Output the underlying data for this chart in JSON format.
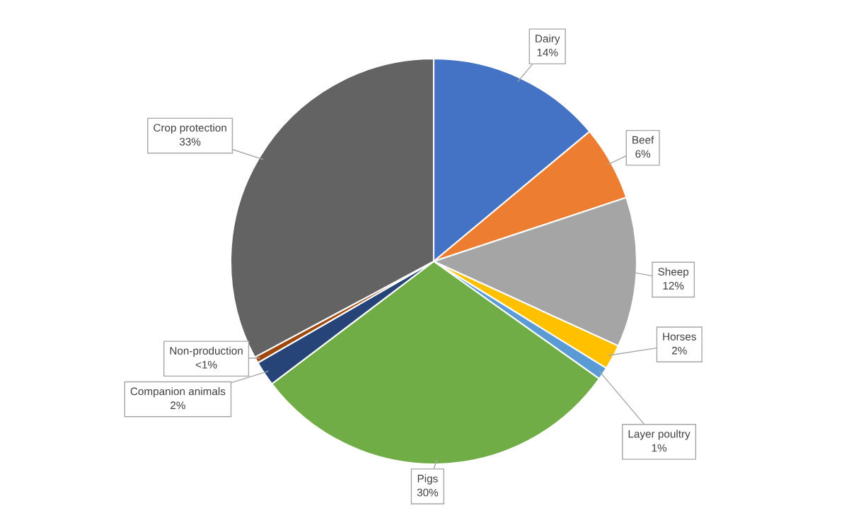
{
  "chart_data": {
    "type": "pie",
    "categories": [
      "Dairy",
      "Beef",
      "Sheep",
      "Horses",
      "Layer poultry",
      "Pigs",
      "Companion animals",
      "Non-production",
      "Crop protection"
    ],
    "values": [
      14,
      6,
      12,
      2,
      1,
      30,
      2,
      0.5,
      33
    ],
    "value_labels": [
      "14%",
      "6%",
      "12%",
      "2%",
      "1%",
      "30%",
      "2%",
      "<1%",
      "33%"
    ],
    "colors": [
      "#4472c4",
      "#ed7d31",
      "#a5a5a5",
      "#ffc000",
      "#5b9bd5",
      "#70ad47",
      "#264478",
      "#9e480e",
      "#636363"
    ]
  }
}
